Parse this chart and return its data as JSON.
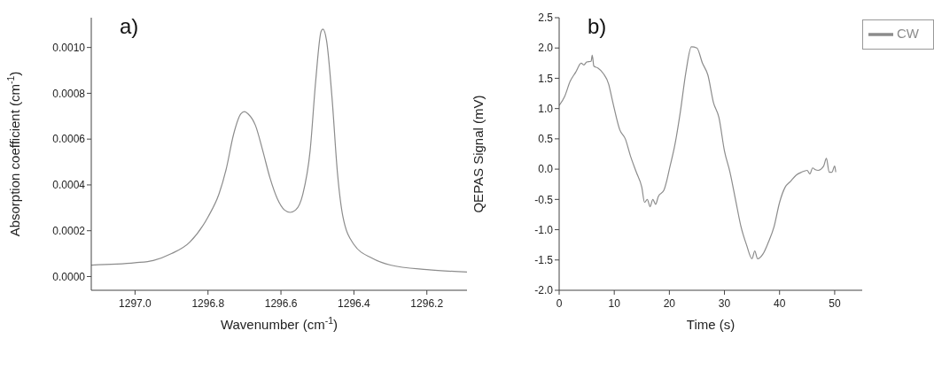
{
  "chart_data": [
    {
      "type": "line",
      "annotations": [
        "a)"
      ],
      "xlabel": "Wavenumber (cm$^{-1}$)",
      "ylabel": "Absorption coefficient (cm$^{-1}$)",
      "xlim": [
        1297.12,
        1296.09
      ],
      "ylim": [
        -6e-05,
        0.00113
      ],
      "xticks": [
        {
          "value": 1297,
          "label": "1297.0"
        },
        {
          "value": 1296.8,
          "label": "1296.8"
        },
        {
          "value": 1296.6,
          "label": "1296.6"
        },
        {
          "value": 1296.4,
          "label": "1296.4"
        },
        {
          "value": 1296.2,
          "label": "1296.2"
        }
      ],
      "yticks": [
        {
          "value": 0,
          "label": "0.0000"
        },
        {
          "value": 0.0002,
          "label": "0.0002"
        },
        {
          "value": 0.0004,
          "label": "0.0004"
        },
        {
          "value": 0.0006,
          "label": "0.0006"
        },
        {
          "value": 0.0008,
          "label": "0.0008"
        },
        {
          "value": 0.001,
          "label": "0.0010"
        }
      ],
      "grid": false,
      "legend": false,
      "marker": "none",
      "line_style": "solid",
      "series": [
        {
          "color": "#8c8c8c",
          "x": [
            1297.12,
            1297.0,
            1296.95,
            1296.9,
            1296.85,
            1296.8,
            1296.77,
            1296.75,
            1296.73,
            1296.71,
            1296.7,
            1296.69,
            1296.67,
            1296.65,
            1296.63,
            1296.61,
            1296.59,
            1296.575,
            1296.56,
            1296.54,
            1296.52,
            1296.505,
            1296.49,
            1296.485,
            1296.475,
            1296.46,
            1296.445,
            1296.43,
            1296.4,
            1296.35,
            1296.3,
            1296.2,
            1296.09
          ],
          "values": [
            5e-05,
            6e-05,
            7e-05,
            0.0001,
            0.00015,
            0.00026,
            0.00036,
            0.00047,
            0.00062,
            0.00071,
            0.00072,
            0.00071,
            0.00066,
            0.00055,
            0.00043,
            0.00034,
            0.00029,
            0.00028,
            0.00029,
            0.00036,
            0.00055,
            0.00085,
            0.00107,
            0.00108,
            0.00103,
            0.00078,
            0.00045,
            0.00026,
            0.00014,
            8e-05,
            5e-05,
            3e-05,
            2e-05
          ]
        }
      ]
    },
    {
      "type": "line",
      "annotations": [
        "b)"
      ],
      "xlabel": "Time (s)",
      "ylabel": "QEPAS Signal (mV)",
      "xlim": [
        0,
        55
      ],
      "ylim": [
        -2,
        2.5
      ],
      "xticks": [
        0,
        10,
        20,
        30,
        40,
        50
      ],
      "yticks": [
        {
          "value": -2,
          "label": "-2.0"
        },
        -1.5,
        {
          "value": -1,
          "label": "-1.0"
        },
        -0.5,
        {
          "value": 0,
          "label": "0.0"
        },
        0.5,
        {
          "value": 1,
          "label": "1.0"
        },
        1.5,
        {
          "value": 2,
          "label": "2.0"
        },
        2.5
      ],
      "grid": false,
      "legend": "top right",
      "marker": "none",
      "line_style": "solid",
      "series": [
        {
          "name": "CW",
          "color": "#8c8c8c",
          "x": [
            0,
            1,
            2,
            3,
            4,
            4.5,
            5,
            5.8,
            6,
            6.3,
            7,
            8,
            9,
            9.5,
            10,
            11,
            12,
            13,
            14,
            15,
            15.5,
            16,
            16.5,
            17,
            17.5,
            18,
            19,
            19.5,
            20,
            21,
            22,
            23,
            24,
            25,
            26,
            27,
            28,
            29,
            30,
            31,
            32,
            33,
            34,
            35,
            35.5,
            36,
            37,
            38,
            39,
            40,
            41,
            42,
            43,
            44,
            45,
            45.5,
            46,
            46.5,
            47,
            48,
            48.5,
            49,
            49.5,
            50,
            50.2
          ],
          "values": [
            1.05,
            1.2,
            1.45,
            1.6,
            1.75,
            1.72,
            1.77,
            1.78,
            1.88,
            1.7,
            1.67,
            1.58,
            1.4,
            1.2,
            1.0,
            0.65,
            0.5,
            0.2,
            -0.05,
            -0.3,
            -0.55,
            -0.5,
            -0.62,
            -0.5,
            -0.58,
            -0.45,
            -0.35,
            -0.2,
            0.0,
            0.4,
            0.95,
            1.6,
            2.02,
            2.0,
            1.75,
            1.55,
            1.1,
            0.85,
            0.3,
            -0.05,
            -0.5,
            -0.95,
            -1.25,
            -1.48,
            -1.35,
            -1.48,
            -1.4,
            -1.2,
            -0.95,
            -0.55,
            -0.3,
            -0.2,
            -0.1,
            -0.05,
            -0.02,
            -0.08,
            0.02,
            -0.01,
            -0.02,
            0.05,
            0.18,
            -0.05,
            -0.05,
            0.05,
            -0.05
          ]
        }
      ]
    }
  ]
}
